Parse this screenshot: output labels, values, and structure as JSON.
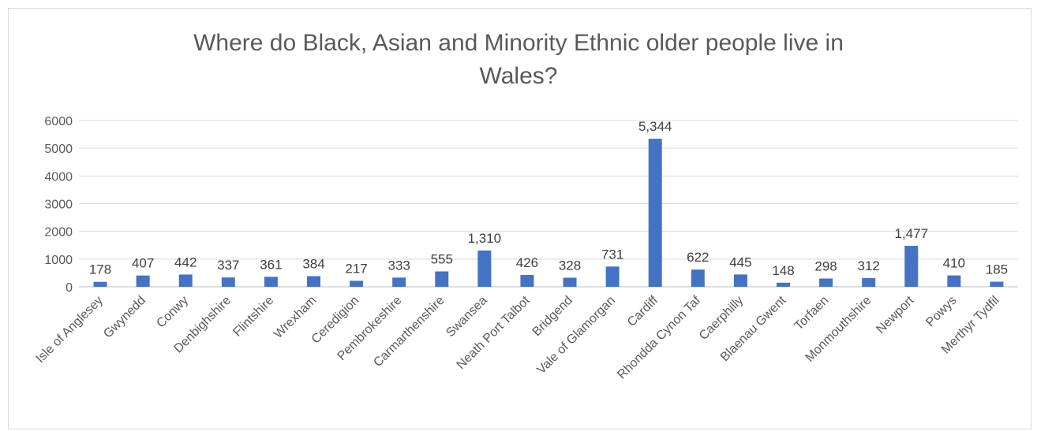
{
  "chart_data": {
    "type": "bar",
    "title_line1": "Where do Black, Asian and Minority Ethnic older people live in",
    "title_line2": "Wales?",
    "categories": [
      "Isle of Anglesey",
      "Gwynedd",
      "Conwy",
      "Denbighshire",
      "Flintshire",
      "Wrexham",
      "Ceredigion",
      "Pembrokeshire",
      "Carmarthenshire",
      "Swansea",
      "Neath Port Talbot",
      "Bridgend",
      "Vale of Glamorgan",
      "Cardiff",
      "Rhondda Cynon Taf",
      "Caerphilly",
      "Blaenau Gwent",
      "Torfaen",
      "Monmouthshire",
      "Newport",
      "Powys",
      "Merthyr Tydfil"
    ],
    "values": [
      178,
      407,
      442,
      337,
      361,
      384,
      217,
      333,
      555,
      1310,
      426,
      328,
      731,
      5344,
      622,
      445,
      148,
      298,
      312,
      1477,
      410,
      185
    ],
    "data_labels": [
      "178",
      "407",
      "442",
      "337",
      "361",
      "384",
      "217",
      "333",
      "555",
      "1,310",
      "426",
      "328",
      "731",
      "5,344",
      "622",
      "445",
      "148",
      "298",
      "312",
      "1,477",
      "410",
      "185"
    ],
    "yticks": [
      0,
      1000,
      2000,
      3000,
      4000,
      5000,
      6000
    ],
    "ylim": [
      0,
      6000
    ],
    "grid": true,
    "legend": "none",
    "bar_color": "#4472c4"
  }
}
